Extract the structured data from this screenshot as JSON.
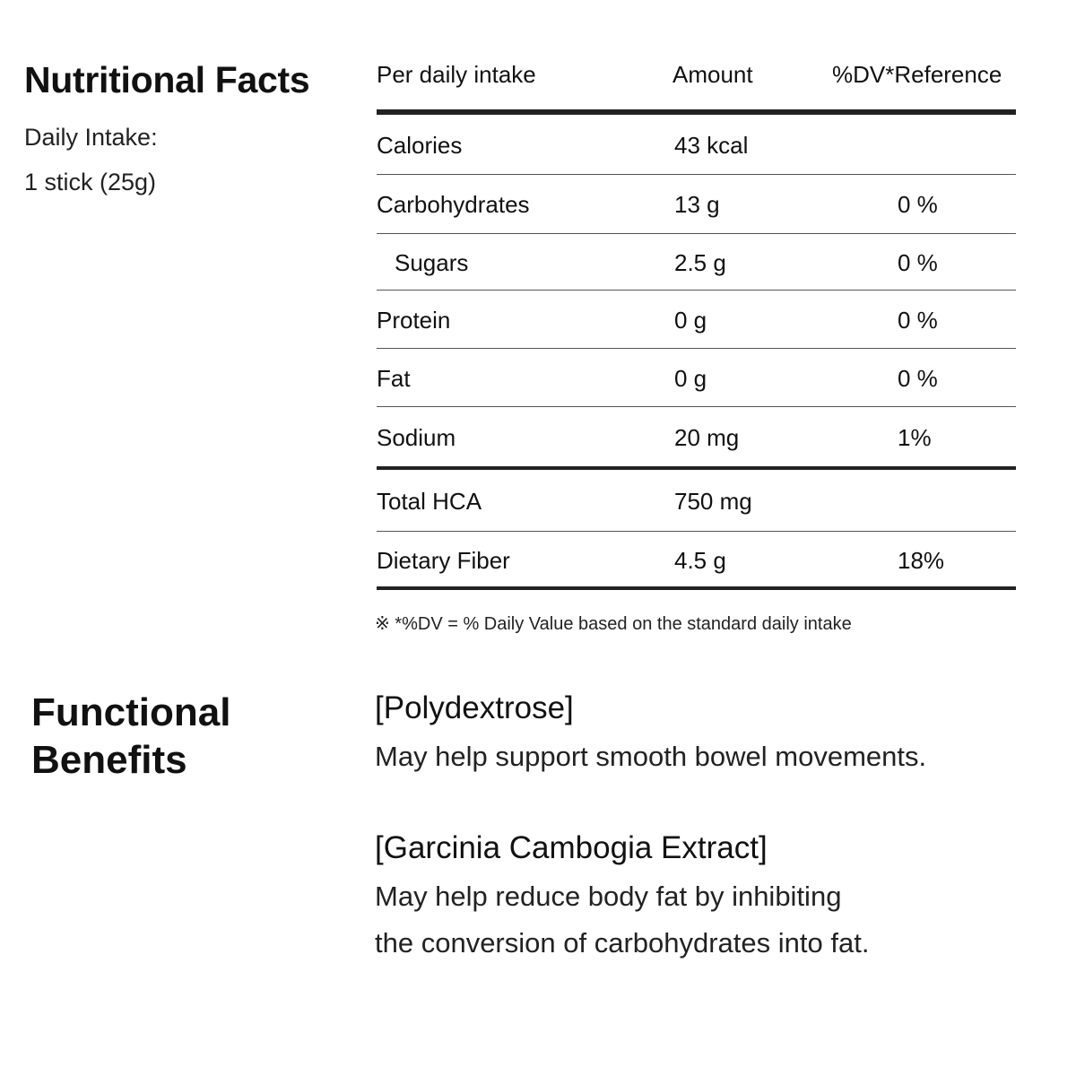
{
  "nutrition": {
    "title": "Nutritional Facts",
    "intake_label": "Daily Intake:",
    "intake_value": "1 stick (25g)"
  },
  "table": {
    "header": [
      "Per daily intake",
      "Amount",
      "%DV*Reference"
    ],
    "groups": [
      [
        {
          "name": "Calories",
          "amount": "43 kcal"
        },
        {
          "name": "Carbohydrates",
          "amount": "13 g",
          "dv": "0 %"
        },
        {
          "name": "Sugars",
          "amount": "2.5 g",
          "dv": "0 %",
          "indent": true
        },
        {
          "name": "Protein",
          "amount": "0 g",
          "dv": "0 %"
        },
        {
          "name": "Fat",
          "amount": "0 g",
          "dv": "0 %"
        },
        {
          "name": "Sodium",
          "amount": "20 mg",
          "dv": "1%"
        }
      ],
      [
        {
          "name": "Total HCA",
          "amount": "750 mg"
        },
        {
          "name": "Dietary Fiber",
          "amount": "4.5 g",
          "dv": "18%"
        }
      ]
    ],
    "footnote": "※  *%DV = % Daily Value based on the standard daily intake"
  },
  "benefits": {
    "title": "Functional Benefits",
    "items": [
      {
        "heading": "[Polydextrose]",
        "lines": [
          "May help support smooth bowel movements."
        ]
      },
      {
        "heading": "[Garcinia Cambogia Extract]",
        "lines": [
          "May help reduce body fat by inhibiting",
          "the conversion of carbohydrates into fat."
        ]
      }
    ]
  }
}
